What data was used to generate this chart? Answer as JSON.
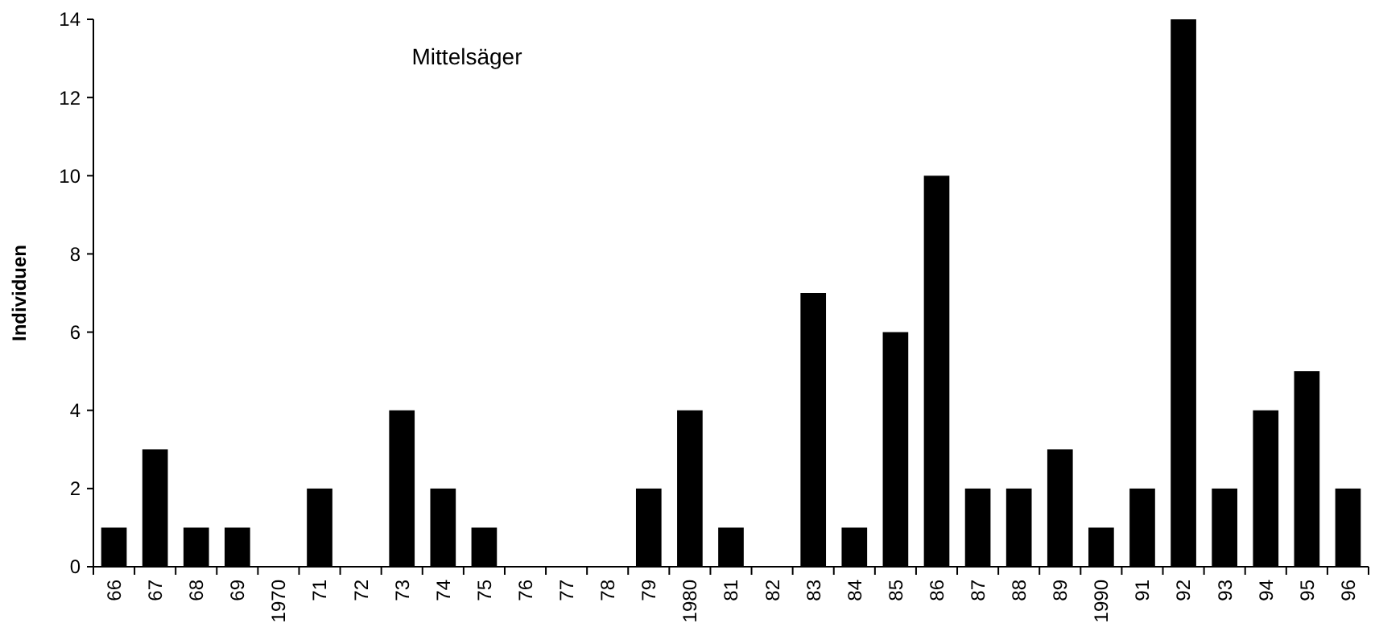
{
  "chart_data": {
    "type": "bar",
    "title": "Mittelsäger",
    "ylabel": "Individuen",
    "categories": [
      "66",
      "67",
      "68",
      "69",
      "1970",
      "71",
      "72",
      "73",
      "74",
      "75",
      "76",
      "77",
      "78",
      "79",
      "1980",
      "81",
      "82",
      "83",
      "84",
      "85",
      "86",
      "87",
      "88",
      "89",
      "1990",
      "91",
      "92",
      "93",
      "94",
      "95",
      "96"
    ],
    "values": [
      1,
      3,
      1,
      1,
      0,
      2,
      0,
      4,
      2,
      1,
      0,
      0,
      0,
      2,
      4,
      1,
      0,
      7,
      1,
      6,
      10,
      2,
      2,
      3,
      1,
      2,
      14,
      2,
      4,
      5,
      2
    ],
    "color": "#000000",
    "ylim": [
      0,
      14
    ],
    "yticks": [
      0,
      2,
      4,
      6,
      8,
      10,
      12,
      14
    ],
    "grid": false
  }
}
